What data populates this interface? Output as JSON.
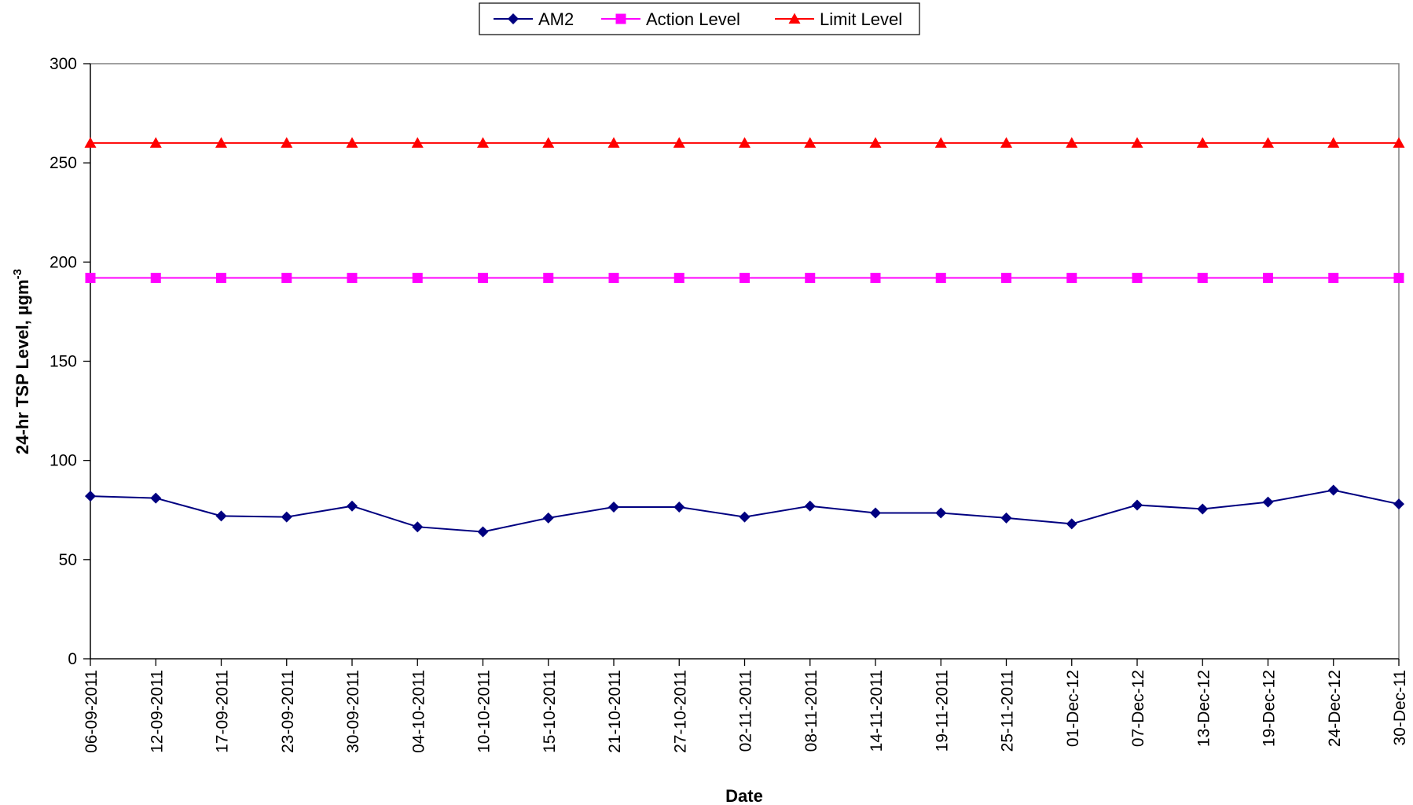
{
  "chart_data": {
    "type": "line",
    "xlabel": "Date",
    "ylabel": "24-hr TSP Level, µgm",
    "ylabel_superscript": "-3",
    "ylim": [
      0,
      300
    ],
    "yticks": [
      0,
      50,
      100,
      150,
      200,
      250,
      300
    ],
    "grid": false,
    "legend_position": "top-center",
    "categories": [
      "06-09-2011",
      "12-09-2011",
      "17-09-2011",
      "23-09-2011",
      "30-09-2011",
      "04-10-2011",
      "10-10-2011",
      "15-10-2011",
      "21-10-2011",
      "27-10-2011",
      "02-11-2011",
      "08-11-2011",
      "14-11-2011",
      "19-11-2011",
      "25-11-2011",
      "01-Dec-12",
      "07-Dec-12",
      "13-Dec-12",
      "19-Dec-12",
      "24-Dec-12",
      "30-Dec-11"
    ],
    "series": [
      {
        "name": "AM2",
        "color": "#000080",
        "marker": "diamond",
        "values": [
          82,
          81,
          72,
          71.5,
          77,
          66.5,
          64,
          71,
          76.5,
          76.5,
          71.5,
          77,
          73.5,
          73.5,
          71,
          68,
          77.5,
          75.5,
          79,
          85,
          78
        ]
      },
      {
        "name": "Action Level",
        "color": "#FF00FF",
        "marker": "square",
        "values": [
          192,
          192,
          192,
          192,
          192,
          192,
          192,
          192,
          192,
          192,
          192,
          192,
          192,
          192,
          192,
          192,
          192,
          192,
          192,
          192,
          192
        ]
      },
      {
        "name": "Limit Level",
        "color": "#FF0000",
        "marker": "triangle",
        "values": [
          260,
          260,
          260,
          260,
          260,
          260,
          260,
          260,
          260,
          260,
          260,
          260,
          260,
          260,
          260,
          260,
          260,
          260,
          260,
          260,
          260
        ]
      }
    ]
  }
}
